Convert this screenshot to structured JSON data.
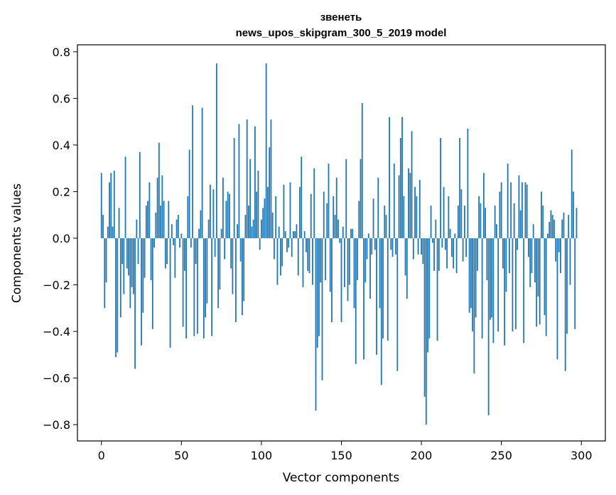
{
  "chart_data": {
    "type": "bar",
    "title_line1": "звенеть",
    "title_line2": "news_upos_skipgram_300_5_2019 model",
    "xlabel": "Vector components",
    "ylabel": "Components values",
    "xlim": [
      -15,
      315
    ],
    "ylim": [
      -0.87,
      0.83
    ],
    "xticks": [
      0,
      50,
      100,
      150,
      200,
      250,
      300
    ],
    "xtick_labels": [
      "0",
      "50",
      "100",
      "150",
      "200",
      "250",
      "300"
    ],
    "yticks": [
      -0.8,
      -0.6,
      -0.4,
      -0.2,
      0.0,
      0.2,
      0.4,
      0.6,
      0.8
    ],
    "ytick_labels": [
      "−0.8",
      "−0.6",
      "−0.4",
      "−0.2",
      "0.0",
      "0.2",
      "0.4",
      "0.6",
      "0.8"
    ],
    "bar_color": "#1f77b4",
    "grid": false,
    "values": [
      0.28,
      0.1,
      -0.3,
      -0.19,
      0.05,
      0.24,
      0.28,
      0.05,
      0.29,
      -0.51,
      -0.49,
      0.13,
      -0.34,
      -0.11,
      -0.24,
      0.35,
      -0.13,
      -0.16,
      -0.3,
      -0.21,
      -0.24,
      -0.56,
      0.08,
      -0.11,
      0.37,
      -0.46,
      -0.32,
      -0.17,
      0.14,
      0.16,
      0.24,
      -0.18,
      -0.39,
      -0.04,
      0.11,
      0.26,
      0.41,
      0.14,
      0.27,
      0.16,
      -0.13,
      -0.11,
      0.16,
      -0.47,
      0.06,
      -0.03,
      -0.17,
      0.08,
      0.1,
      -0.04,
      0.02,
      -0.38,
      -0.14,
      -0.43,
      0.18,
      0.38,
      -0.04,
      0.57,
      -0.42,
      -0.11,
      -0.41,
      0.04,
      0.12,
      0.56,
      -0.43,
      -0.34,
      -0.28,
      0.08,
      0.23,
      -0.42,
      0.21,
      -0.08,
      0.75,
      -0.3,
      -0.22,
      0.04,
      0.26,
      -0.09,
      0.16,
      0.2,
      0.19,
      -0.13,
      -0.24,
      0.43,
      -0.36,
      0.06,
      0.49,
      -0.1,
      -0.33,
      -0.27,
      0.1,
      0.51,
      0.14,
      0.34,
      0.05,
      0.08,
      0.48,
      0.2,
      0.29,
      -0.05,
      0.08,
      0.13,
      0.17,
      0.75,
      0.22,
      0.39,
      0.51,
      0.11,
      -0.09,
      0.18,
      -0.2,
      0.05,
      -0.16,
      -0.12,
      0.23,
      0.03,
      -0.06,
      -0.04,
      0.24,
      -0.08,
      0.03,
      0.03,
      0.06,
      -0.16,
      0.22,
      0.35,
      -0.21,
      0.03,
      -0.06,
      -0.14,
      -0.15,
      0.19,
      -0.2,
      0.3,
      -0.74,
      -0.47,
      -0.42,
      -0.19,
      -0.61,
      0.2,
      -0.18,
      0.15,
      0.32,
      -0.23,
      -0.36,
      0.18,
      0.1,
      0.26,
      0.08,
      -0.02,
      -0.36,
      0.05,
      -0.21,
      0.34,
      -0.27,
      -0.2,
      0.04,
      0.04,
      -0.3,
      -0.54,
      -0.18,
      0.16,
      0.34,
      0.58,
      -0.52,
      -0.19,
      -0.09,
      0.02,
      -0.26,
      -0.07,
      0.17,
      -0.05,
      -0.5,
      0.26,
      -0.3,
      -0.63,
      -0.43,
      0.14,
      0.1,
      -0.44,
      0.52,
      -0.05,
      -0.08,
      0.32,
      -0.07,
      -0.57,
      0.27,
      0.43,
      0.52,
      0.18,
      -0.16,
      -0.26,
      0.3,
      0.28,
      0.46,
      -0.09,
      0.22,
      0.18,
      -0.07,
      0.25,
      -0.07,
      -0.11,
      -0.68,
      -0.8,
      -0.49,
      -0.43,
      0.14,
      -0.02,
      -0.14,
      0.08,
      -0.44,
      -0.14,
      0.43,
      -0.04,
      0.22,
      -0.05,
      -0.13,
      0.18,
      0.04,
      -0.08,
      -0.13,
      0.02,
      -0.15,
      0.14,
      0.43,
      0.21,
      -0.1,
      0.14,
      -0.08,
      0.47,
      -0.32,
      -0.3,
      -0.4,
      -0.58,
      -0.34,
      -0.14,
      0.18,
      0.15,
      -0.43,
      0.28,
      0.13,
      -0.18,
      -0.76,
      -0.35,
      -0.34,
      -0.45,
      0.14,
      0.06,
      -0.4,
      0.2,
      0.24,
      -0.13,
      -0.46,
      -0.23,
      0.32,
      -0.15,
      0.24,
      -0.4,
      0.15,
      -0.39,
      -0.05,
      0.27,
      0.12,
      0.24,
      -0.45,
      0.24,
      0.23,
      -0.08,
      -0.21,
      -0.15,
      0.06,
      -0.19,
      -0.38,
      -0.25,
      -0.37,
      0.2,
      0.14,
      -0.33,
      -0.42,
      0.02,
      0.07,
      0.12,
      0.1,
      0.08,
      -0.1,
      -0.52,
      -0.06,
      -0.15,
      0.08,
      0.11,
      -0.57,
      -0.41,
      0.1,
      -0.2,
      0.38,
      0.2,
      -0.39,
      0.13
    ]
  }
}
